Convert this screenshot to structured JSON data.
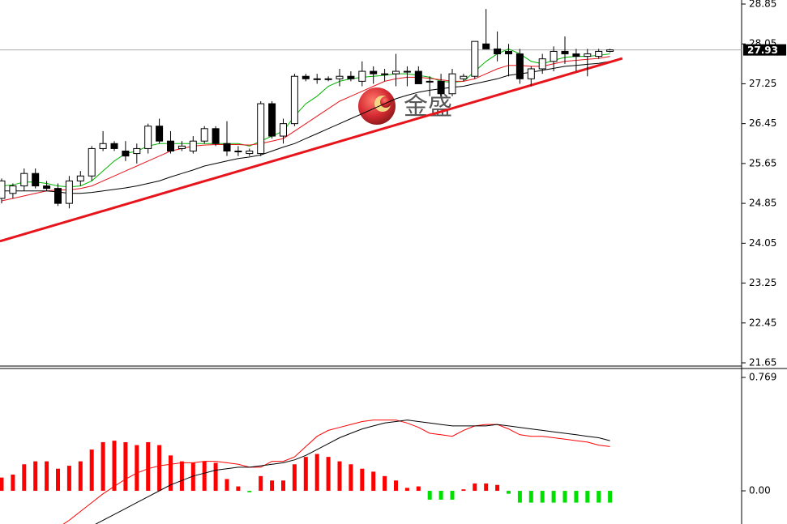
{
  "chart_data": [
    {
      "type": "candlestick",
      "watermark": "金盛",
      "open": [
        24.95,
        25.05,
        25.2,
        25.45,
        25.2,
        25.15,
        24.85,
        25.3,
        25.4,
        25.95,
        26.05,
        25.9,
        25.85,
        25.95,
        26.4,
        26.1,
        25.95,
        25.9,
        26.1,
        26.35,
        26.05,
        25.9,
        25.85,
        25.85,
        26.85,
        26.2,
        26.45,
        27.4,
        27.35,
        27.35,
        27.35,
        27.4,
        27.3,
        27.5,
        27.45,
        27.45,
        27.5,
        27.5,
        27.3,
        27.3,
        27.05,
        27.35,
        27.4,
        28.05,
        27.95,
        27.9,
        27.85,
        27.35,
        27.55,
        27.7,
        27.9,
        27.85,
        27.8,
        27.8,
        27.9
      ],
      "high": [
        25.35,
        25.25,
        25.55,
        25.55,
        25.3,
        25.25,
        25.4,
        25.5,
        26.0,
        26.3,
        26.1,
        26.1,
        26.05,
        26.45,
        26.55,
        26.3,
        26.1,
        26.2,
        26.4,
        26.4,
        26.5,
        26.0,
        25.95,
        26.9,
        26.9,
        26.55,
        27.45,
        27.45,
        27.45,
        27.4,
        27.55,
        27.5,
        27.7,
        27.6,
        27.55,
        27.85,
        27.6,
        27.6,
        27.4,
        27.45,
        27.55,
        27.45,
        28.1,
        28.75,
        28.3,
        28.05,
        27.95,
        27.6,
        27.85,
        28.0,
        28.2,
        27.95,
        27.95,
        27.95,
        27.95
      ],
      "low": [
        24.85,
        24.95,
        25.1,
        25.15,
        25.1,
        24.8,
        24.75,
        25.2,
        25.3,
        25.9,
        25.9,
        25.7,
        25.65,
        25.85,
        26.05,
        25.85,
        25.9,
        25.85,
        26.05,
        26.0,
        25.8,
        25.8,
        25.8,
        25.8,
        26.15,
        26.05,
        26.4,
        27.3,
        27.25,
        27.3,
        27.2,
        27.3,
        27.2,
        27.25,
        27.3,
        27.2,
        27.2,
        27.25,
        27.0,
        27.0,
        27.0,
        27.3,
        27.35,
        27.95,
        27.7,
        27.4,
        27.25,
        27.2,
        27.45,
        27.5,
        27.65,
        27.5,
        27.4,
        27.75,
        27.88
      ],
      "close": [
        25.3,
        25.2,
        25.45,
        25.2,
        25.15,
        24.85,
        25.3,
        25.4,
        25.95,
        26.05,
        25.95,
        25.8,
        25.95,
        26.4,
        26.1,
        25.9,
        26.0,
        26.1,
        26.35,
        26.05,
        25.9,
        25.9,
        25.9,
        26.85,
        26.2,
        26.45,
        27.4,
        27.35,
        27.35,
        27.35,
        27.4,
        27.35,
        27.5,
        27.45,
        27.45,
        27.5,
        27.5,
        27.25,
        27.3,
        27.05,
        27.45,
        27.4,
        28.1,
        27.95,
        27.85,
        27.85,
        27.35,
        27.55,
        27.75,
        27.9,
        27.85,
        27.8,
        27.85,
        27.9,
        27.93
      ],
      "series": [
        {
          "color": "#00b400",
          "values": [
            25.2,
            25.22,
            25.28,
            25.28,
            25.25,
            25.2,
            25.18,
            25.2,
            25.3,
            25.5,
            25.7,
            25.85,
            25.9,
            26.0,
            26.05,
            26.05,
            26.05,
            26.05,
            26.05,
            26.05,
            26.05,
            26.05,
            26.0,
            26.1,
            26.2,
            26.3,
            26.6,
            26.85,
            27.0,
            27.2,
            27.3,
            27.35,
            27.38,
            27.4,
            27.42,
            27.45,
            27.45,
            27.42,
            27.38,
            27.3,
            27.28,
            27.3,
            27.5,
            27.7,
            27.85,
            27.95,
            27.85,
            27.7,
            27.65,
            27.72,
            27.78,
            27.8,
            27.8,
            27.82,
            27.85
          ]
        },
        {
          "color": "#e8141c",
          "values": [
            24.9,
            24.95,
            25.0,
            25.05,
            25.1,
            25.12,
            25.12,
            25.15,
            25.2,
            25.3,
            25.4,
            25.5,
            25.6,
            25.7,
            25.8,
            25.9,
            25.95,
            26.0,
            26.02,
            26.03,
            26.03,
            26.03,
            26.02,
            26.05,
            26.1,
            26.15,
            26.3,
            26.45,
            26.6,
            26.75,
            26.9,
            27.0,
            27.1,
            27.2,
            27.3,
            27.35,
            27.38,
            27.38,
            27.36,
            27.33,
            27.3,
            27.3,
            27.35,
            27.45,
            27.55,
            27.62,
            27.62,
            27.6,
            27.6,
            27.65,
            27.7,
            27.72,
            27.74,
            27.76,
            27.8
          ]
        },
        {
          "color": "#000000",
          "values": [
            25.1,
            25.1,
            25.1,
            25.1,
            25.1,
            25.08,
            25.05,
            25.05,
            25.07,
            25.1,
            25.13,
            25.16,
            25.2,
            25.25,
            25.3,
            25.38,
            25.45,
            25.52,
            25.6,
            25.65,
            25.7,
            25.75,
            25.78,
            25.82,
            25.9,
            25.98,
            26.05,
            26.15,
            26.25,
            26.35,
            26.45,
            26.55,
            26.65,
            26.75,
            26.85,
            26.95,
            27.02,
            27.08,
            27.12,
            27.15,
            27.18,
            27.2,
            27.25,
            27.3,
            27.35,
            27.42,
            27.45,
            27.48,
            27.52,
            27.56,
            27.6,
            27.62,
            27.64,
            27.66,
            27.7
          ]
        }
      ],
      "trendline": {
        "color": "#e8141c",
        "x": [
          -0.15,
          55.1
        ],
        "values": [
          24.09,
          27.76
        ]
      },
      "current_price": 27.93,
      "ylim": [
        21.65,
        28.85
      ],
      "yticks": [
        28.85,
        28.05,
        27.25,
        26.45,
        25.65,
        24.85,
        24.05,
        23.25,
        22.45,
        21.65
      ]
    },
    {
      "type": "macd",
      "histogram": [
        0.09,
        0.11,
        0.18,
        0.2,
        0.2,
        0.15,
        0.17,
        0.2,
        0.28,
        0.33,
        0.34,
        0.33,
        0.31,
        0.33,
        0.31,
        0.24,
        0.2,
        0.19,
        0.2,
        0.19,
        0.08,
        0.03,
        -0.01,
        0.1,
        0.07,
        0.07,
        0.18,
        0.23,
        0.25,
        0.23,
        0.2,
        0.18,
        0.15,
        0.13,
        0.1,
        0.07,
        0.02,
        0.03,
        -0.06,
        -0.06,
        -0.06,
        0.01,
        0.05,
        0.05,
        0.04,
        -0.02,
        -0.08,
        -0.08,
        -0.08,
        -0.08,
        -0.08,
        -0.08,
        -0.08,
        -0.08,
        -0.08
      ],
      "colors": {
        "up": "#ff0000",
        "down": "#00e000"
      },
      "series": [
        {
          "color": "#ff0000",
          "values": [
            null,
            null,
            null,
            null,
            null,
            -0.25,
            -0.2,
            -0.14,
            -0.08,
            -0.02,
            0.03,
            0.08,
            0.12,
            0.15,
            0.17,
            0.18,
            0.19,
            0.19,
            0.2,
            0.2,
            0.19,
            0.18,
            0.16,
            0.16,
            0.2,
            0.2,
            0.23,
            0.3,
            0.37,
            0.41,
            0.43,
            0.45,
            0.47,
            0.48,
            0.48,
            0.48,
            0.46,
            0.43,
            0.39,
            0.38,
            0.37,
            0.41,
            0.44,
            0.45,
            0.45,
            0.42,
            0.38,
            0.37,
            0.37,
            0.36,
            0.35,
            0.34,
            0.33,
            0.31,
            0.3
          ]
        },
        {
          "color": "#000000",
          "values": [
            null,
            null,
            null,
            null,
            null,
            null,
            null,
            null,
            -0.24,
            -0.2,
            -0.16,
            -0.12,
            -0.08,
            -0.04,
            0.0,
            0.04,
            0.07,
            0.1,
            0.12,
            0.14,
            0.15,
            0.16,
            0.16,
            0.17,
            0.18,
            0.19,
            0.21,
            0.24,
            0.28,
            0.32,
            0.36,
            0.39,
            0.42,
            0.44,
            0.46,
            0.47,
            0.48,
            0.47,
            0.46,
            0.45,
            0.44,
            0.44,
            0.44,
            0.44,
            0.45,
            0.44,
            0.43,
            0.42,
            0.41,
            0.4,
            0.39,
            0.38,
            0.37,
            0.36,
            0.34
          ]
        }
      ],
      "ylim": [
        -0.225,
        0.824
      ],
      "yticks": [
        0.769,
        {
          "value": 0,
          "label": "0.00"
        }
      ]
    }
  ]
}
